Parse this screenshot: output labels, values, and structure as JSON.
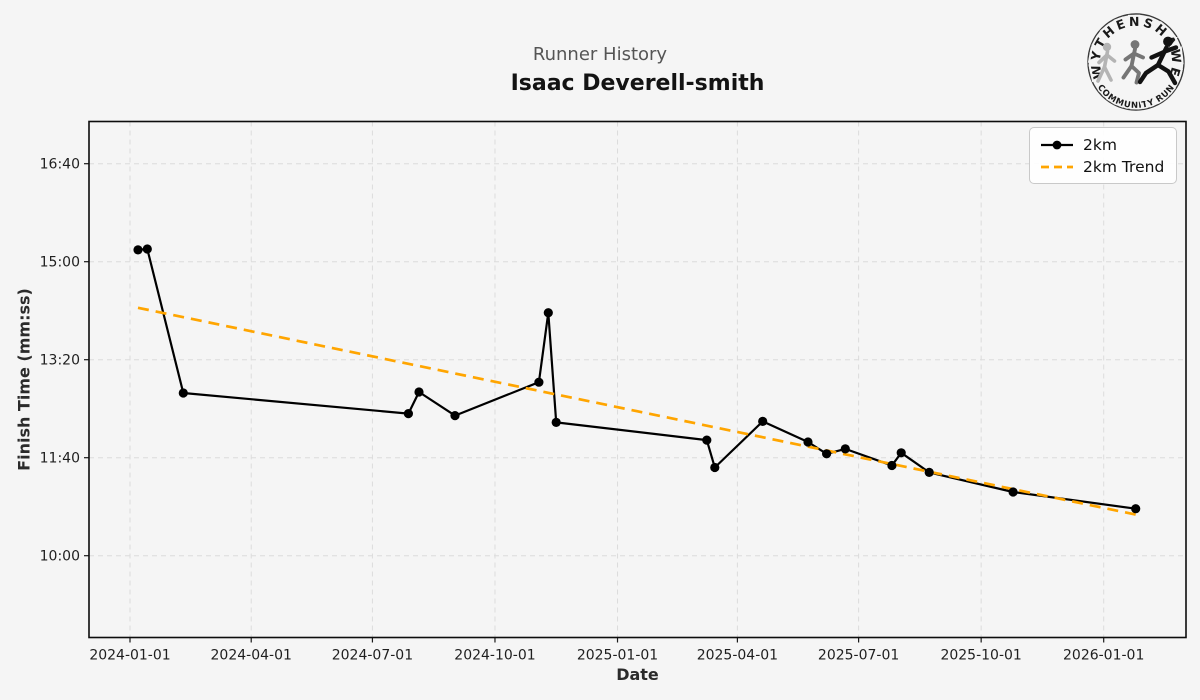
{
  "logo": {
    "top_text": "WYTHENSHAWE",
    "bottom_text": "COMMUNITY RUN",
    "colors": [
      "#b4b4b4",
      "#767676",
      "#121212"
    ]
  },
  "chart_data": {
    "type": "line",
    "suptitle": "Runner History",
    "title": "Isaac Deverell-smith",
    "xlabel": "Date",
    "ylabel": "Finish Time (mm:ss)",
    "grid": true,
    "legend_position": "upper right",
    "x_ticks": [
      "2024-01-01",
      "2024-04-01",
      "2024-07-01",
      "2024-10-01",
      "2025-01-01",
      "2025-04-01",
      "2025-07-01",
      "2025-10-01",
      "2026-01-01"
    ],
    "y_ticks": [
      {
        "seconds": 1000,
        "label": "16:40"
      },
      {
        "seconds": 900,
        "label": "15:00"
      },
      {
        "seconds": 800,
        "label": "13:20"
      },
      {
        "seconds": 700,
        "label": "11:40"
      },
      {
        "seconds": 600,
        "label": "10:00"
      }
    ],
    "xlim": [
      "2023-12-02",
      "2026-03-04"
    ],
    "ylim_seconds": [
      522,
      1044
    ],
    "colors": {
      "line": "#000000",
      "trend": "#ffa500"
    },
    "legend": [
      {
        "label": "2km"
      },
      {
        "label": "2km Trend"
      }
    ],
    "series": [
      {
        "name": "2km",
        "points": [
          {
            "date": "2024-01-07",
            "time": "15:12",
            "seconds": 912
          },
          {
            "date": "2024-01-14",
            "time": "15:13",
            "seconds": 913
          },
          {
            "date": "2024-02-10",
            "time": "12:46",
            "seconds": 766
          },
          {
            "date": "2024-07-28",
            "time": "12:25",
            "seconds": 745
          },
          {
            "date": "2024-08-05",
            "time": "12:47",
            "seconds": 767
          },
          {
            "date": "2024-09-01",
            "time": "12:23",
            "seconds": 743
          },
          {
            "date": "2024-11-03",
            "time": "12:57",
            "seconds": 777
          },
          {
            "date": "2024-11-10",
            "time": "14:08",
            "seconds": 848
          },
          {
            "date": "2024-11-16",
            "time": "12:16",
            "seconds": 736
          },
          {
            "date": "2025-03-09",
            "time": "11:58",
            "seconds": 718
          },
          {
            "date": "2025-03-15",
            "time": "11:30",
            "seconds": 690
          },
          {
            "date": "2025-04-20",
            "time": "12:17",
            "seconds": 737
          },
          {
            "date": "2025-05-24",
            "time": "11:56",
            "seconds": 716
          },
          {
            "date": "2025-06-07",
            "time": "11:44",
            "seconds": 704
          },
          {
            "date": "2025-06-21",
            "time": "11:49",
            "seconds": 709
          },
          {
            "date": "2025-07-26",
            "time": "11:32",
            "seconds": 692
          },
          {
            "date": "2025-08-02",
            "time": "11:45",
            "seconds": 705
          },
          {
            "date": "2025-08-23",
            "time": "11:25",
            "seconds": 685
          },
          {
            "date": "2025-10-25",
            "time": "11:05",
            "seconds": 665
          },
          {
            "date": "2026-01-25",
            "time": "10:48",
            "seconds": 648
          }
        ]
      }
    ],
    "trend": {
      "name": "2km Trend",
      "start": {
        "date": "2024-01-07",
        "seconds": 853
      },
      "end": {
        "date": "2026-01-25",
        "seconds": 642
      }
    }
  }
}
